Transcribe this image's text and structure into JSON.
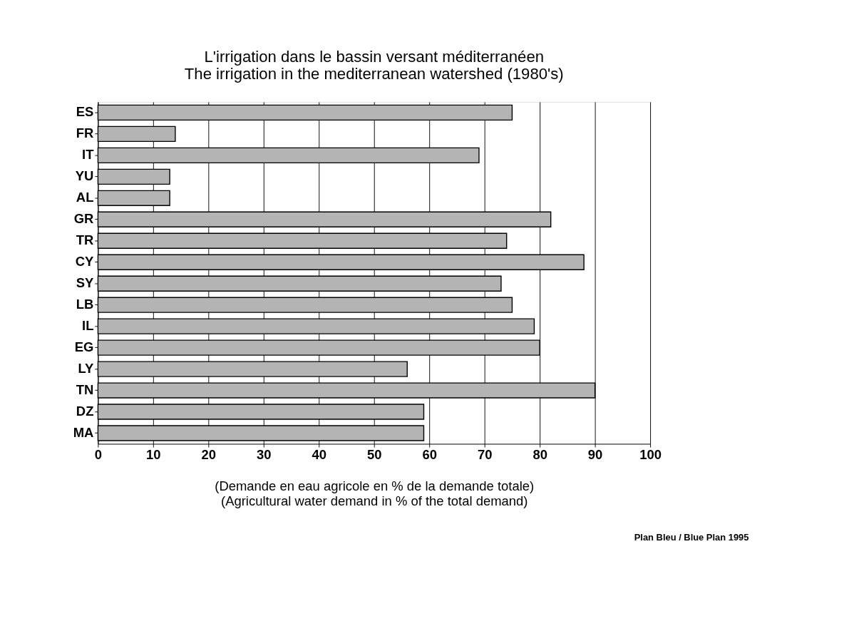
{
  "chart_data": {
    "type": "bar",
    "orientation": "horizontal",
    "title": "L'irrigation dans le bassin versant méditerranéen\nThe irrigation in the mediterranean watershed (1980's)",
    "xlabel": "(Demande en eau agricole en % de la demande totale)\n(Agricultural water demand in % of the total demand)",
    "categories": [
      "ES",
      "FR",
      "IT",
      "YU",
      "AL",
      "GR",
      "TR",
      "CY",
      "SY",
      "LB",
      "IL",
      "EG",
      "LY",
      "TN",
      "DZ",
      "MA"
    ],
    "values": [
      75,
      14,
      69,
      13,
      13,
      82,
      74,
      88,
      73,
      75,
      79,
      80,
      56,
      90,
      59,
      59
    ],
    "color": "#b4b4b4",
    "xlim": [
      0,
      100
    ],
    "xticks": [
      0,
      10,
      20,
      30,
      40,
      50,
      60,
      70,
      80,
      90,
      100
    ],
    "grid": "x",
    "annotations": [
      "Plan Bleu / Blue Plan 1995"
    ]
  }
}
